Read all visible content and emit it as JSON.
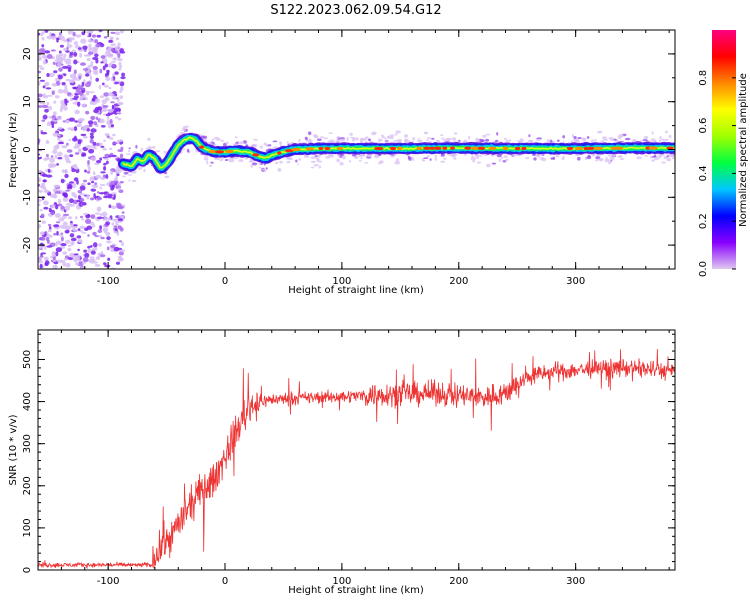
{
  "figure_title": "S122.2023.062.09.54.G12",
  "chart_data": [
    {
      "type": "heatmap",
      "title": "",
      "xlabel": "Height of straight line (km)",
      "ylabel": "Frequency (Hz)",
      "xlim": [
        -160,
        385
      ],
      "ylim": [
        -25,
        25
      ],
      "x_ticks": [
        -100,
        0,
        100,
        200,
        300
      ],
      "x_tick_labels": [
        "-100",
        "0",
        "100",
        "200",
        "300"
      ],
      "y_ticks": [
        -20,
        -10,
        0,
        10,
        20
      ],
      "y_tick_labels": [
        "-20",
        "-10",
        "0",
        "10",
        "20"
      ],
      "grid": false,
      "noise_region_x": [
        -160,
        -87
      ],
      "signal_start_x": -87,
      "frequency_track": {
        "x": [
          -87,
          -80,
          -75,
          -70,
          -65,
          -60,
          -55,
          -50,
          -45,
          -40,
          -35,
          -30,
          -25,
          -20,
          -15,
          -10,
          0,
          10,
          20,
          30,
          35,
          40,
          50,
          60,
          80,
          100,
          150,
          200,
          250,
          300,
          350,
          385
        ],
        "y": [
          -3,
          -3.5,
          -2,
          -2.5,
          -1,
          -2,
          -4,
          -3,
          -1,
          1,
          2,
          2.5,
          2,
          0.5,
          0,
          -0.5,
          -0.5,
          -0.3,
          -0.5,
          -1.5,
          -1.8,
          -1.2,
          -0.5,
          0,
          0.2,
          0.2,
          0.2,
          0.3,
          0.2,
          0.2,
          0.3,
          0.3
        ]
      },
      "colorbar": {
        "label": "Normalized spectral amplitude",
        "range": [
          0,
          1
        ],
        "ticks": [
          0,
          0.2,
          0.4,
          0.6,
          0.8
        ],
        "tick_labels": [
          "0.0",
          "0.2",
          "0.4",
          "0.6",
          "0.8"
        ],
        "colormap": "gist_rainbow",
        "colors": [
          "#e0c8f0",
          "#8800ff",
          "#0000ff",
          "#00c8ff",
          "#00ff40",
          "#a0ff00",
          "#ffff00",
          "#ff8800",
          "#ff0000",
          "#ff0080"
        ]
      }
    },
    {
      "type": "line",
      "title": "",
      "xlabel": "Height of straight line (km)",
      "ylabel": "SNR (10 * v/v)",
      "xlim": [
        -160,
        385
      ],
      "ylim": [
        0,
        570
      ],
      "x_ticks": [
        -100,
        0,
        100,
        200,
        300
      ],
      "x_tick_labels": [
        "-100",
        "0",
        "100",
        "200",
        "300"
      ],
      "y_ticks": [
        0,
        100,
        200,
        300,
        400,
        500
      ],
      "y_tick_labels": [
        "0",
        "100",
        "200",
        "300",
        "400",
        "500"
      ],
      "grid": false,
      "line_color": "#ee3333",
      "series": [
        {
          "x": [
            -160,
            -100,
            -62,
            -60,
            -55,
            -50,
            -45,
            -40,
            -35,
            -30,
            -25,
            -20,
            -15,
            -10,
            -5,
            0,
            5,
            10,
            15,
            20,
            25,
            30,
            40,
            60,
            80,
            100,
            120,
            140,
            160,
            180,
            200,
            220,
            240,
            260,
            280,
            300,
            320,
            340,
            360,
            385
          ],
          "values": [
            12,
            12,
            12,
            30,
            55,
            70,
            85,
            110,
            130,
            150,
            170,
            190,
            200,
            210,
            240,
            270,
            300,
            330,
            360,
            385,
            395,
            400,
            405,
            408,
            410,
            412,
            415,
            418,
            418,
            420,
            415,
            410,
            420,
            460,
            470,
            475,
            478,
            480,
            478,
            470
          ]
        }
      ],
      "noise_amplitude": [
        {
          "from": -160,
          "to": -62,
          "amp": 8
        },
        {
          "from": -62,
          "to": 30,
          "amp": 60
        },
        {
          "from": 30,
          "to": 120,
          "amp": 22
        },
        {
          "from": 120,
          "to": 250,
          "amp": 42
        },
        {
          "from": 250,
          "to": 385,
          "amp": 32
        }
      ]
    }
  ]
}
